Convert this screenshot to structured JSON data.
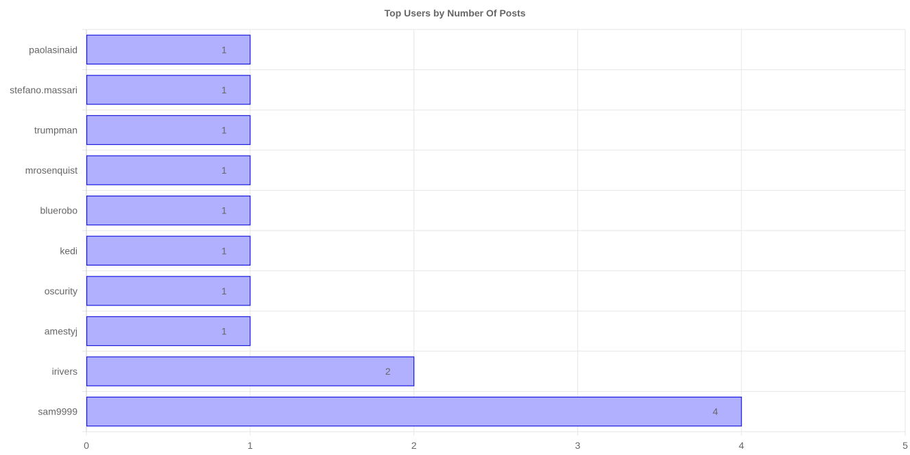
{
  "chart_data": {
    "type": "bar",
    "orientation": "horizontal",
    "title": "Top Users by Number Of Posts",
    "categories": [
      "paolasinaid",
      "stefano.massari",
      "trumpman",
      "mrosenquist",
      "bluerobo",
      "kedi",
      "oscurity",
      "amestyj",
      "irivers",
      "sam9999"
    ],
    "values": [
      1,
      1,
      1,
      1,
      1,
      1,
      1,
      1,
      2,
      4
    ],
    "x_ticks": [
      "0",
      "1",
      "2",
      "3",
      "4",
      "5"
    ],
    "xlim": [
      0,
      5
    ],
    "xlabel": "",
    "ylabel": "",
    "grid": true,
    "data_labels": true,
    "colors": {
      "bar_fill": "#b0b0fe",
      "bar_stroke": "#1a1adf",
      "grid": "#e6e6e6",
      "text": "#666666"
    }
  }
}
